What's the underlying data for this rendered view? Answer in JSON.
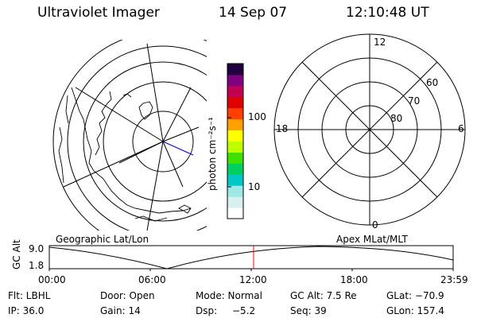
{
  "header": {
    "title": "Ultraviolet Imager",
    "date": "14 Sep 07",
    "time": "12:10:48 UT"
  },
  "geo_panel": {
    "label": "Geographic Lat/Lon"
  },
  "apex_panel": {
    "label": "Apex MLat/MLT",
    "mlt_labels": {
      "top": "12",
      "left": "18",
      "right": "6",
      "bottom": "0"
    },
    "lat_labels": [
      "60",
      "70",
      "80"
    ]
  },
  "colorbar": {
    "unit_label": "photon cm⁻²s⁻¹",
    "ticks": [
      "100",
      "10"
    ],
    "colors": [
      "#ffffff",
      "#d8f0f0",
      "#9fe8e8",
      "#00c8c8",
      "#00d060",
      "#40e000",
      "#c0ff00",
      "#ffff00",
      "#ffa000",
      "#ff4000",
      "#e00000",
      "#c00050",
      "#800080",
      "#200040"
    ]
  },
  "altitude_plot": {
    "ylabel": "GC Alt",
    "ytick_top": "9.0",
    "ytick_bottom": "1.8",
    "xticks": [
      "00:00",
      "06:00",
      "12:00",
      "18:00",
      "23:59"
    ],
    "marker_color": "#ff0000"
  },
  "footer": {
    "row1": [
      "Flt: LBHL",
      "Door: Open",
      "Mode: Normal",
      "GC Alt: 7.5 Re",
      "GLat: −70.9"
    ],
    "row2": [
      "IP: 36.0",
      "Gain: 14",
      "Dsp:",
      "−5.2",
      "Seq: 39",
      "GLon: 157.4"
    ]
  }
}
